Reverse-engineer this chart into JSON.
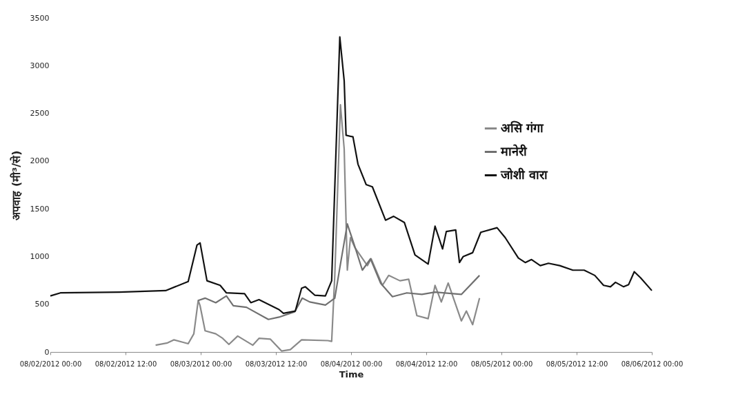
{
  "chart_data": {
    "type": "line",
    "xlabel": "Time",
    "ylabel": "अपवाह (मी³/से)",
    "xlim": [
      "2012-08-02T00:00",
      "2012-08-06T00:00"
    ],
    "xticks": [
      {
        "value": "2012-08-02T00:00",
        "label": "08/02/2012 00:00"
      },
      {
        "value": "2012-08-02T12:00",
        "label": "08/02/2012 12:00"
      },
      {
        "value": "2012-08-03T00:00",
        "label": "08/03/2012 00:00"
      },
      {
        "value": "2012-08-03T12:00",
        "label": "08/03/2012 12:00"
      },
      {
        "value": "2012-08-04T00:00",
        "label": "08/04/2012 00:00"
      },
      {
        "value": "2012-08-04T12:00",
        "label": "08/04/2012 12:00"
      },
      {
        "value": "2012-08-05T00:00",
        "label": "08/05/2012 00:00"
      },
      {
        "value": "2012-08-05T12:00",
        "label": "08/05/2012 12:00"
      },
      {
        "value": "2012-08-06T00:00",
        "label": "08/06/2012 00:00"
      }
    ],
    "ylim": [
      0,
      3500
    ],
    "yticks": [
      0,
      500,
      1000,
      1500,
      2000,
      2500,
      3000,
      3500
    ],
    "grid": false,
    "legend": "top right",
    "line_style": "solid",
    "marker": "none",
    "series": [
      {
        "name": "असि गंगा",
        "color": "#8a8a8a",
        "x": [
          "2012-08-02T16:48",
          "2012-08-02T18:42",
          "2012-08-02T19:42",
          "2012-08-02T22:00",
          "2012-08-02T22:54",
          "2012-08-02T23:36",
          "2012-08-02T23:54",
          "2012-08-03T00:42",
          "2012-08-03T02:24",
          "2012-08-03T03:30",
          "2012-08-03T04:30",
          "2012-08-03T05:54",
          "2012-08-03T08:18",
          "2012-08-03T09:18",
          "2012-08-03T11:06",
          "2012-08-03T12:54",
          "2012-08-03T14:18",
          "2012-08-03T16:06",
          "2012-08-03T20:18",
          "2012-08-03T20:54",
          "2012-08-03T21:24",
          "2012-08-03T22:18",
          "2012-08-03T22:54",
          "2012-08-03T23:24",
          "2012-08-03T23:54",
          "2012-08-04T00:36",
          "2012-08-04T02:36",
          "2012-08-04T03:12",
          "2012-08-04T05:00",
          "2012-08-04T06:00",
          "2012-08-04T07:48",
          "2012-08-04T09:12",
          "2012-08-04T10:30",
          "2012-08-04T12:18",
          "2012-08-04T13:24",
          "2012-08-04T14:24",
          "2012-08-04T15:30",
          "2012-08-04T17:36",
          "2012-08-04T18:24",
          "2012-08-04T19:24",
          "2012-08-04T20:30"
        ],
        "values": [
          71,
          95,
          127,
          87,
          190,
          540,
          484,
          222,
          190,
          143,
          79,
          167,
          71,
          143,
          135,
          10,
          24,
          127,
          119,
          111,
          802,
          2590,
          2127,
          857,
          1198,
          1095,
          905,
          976,
          698,
          802,
          746,
          762,
          381,
          349,
          698,
          524,
          722,
          325,
          429,
          286,
          564
        ]
      },
      {
        "name": "मानेरी",
        "color": "#707070",
        "x": [
          "2012-08-02T23:36",
          "2012-08-03T00:42",
          "2012-08-03T02:24",
          "2012-08-03T04:06",
          "2012-08-03T05:12",
          "2012-08-03T07:18",
          "2012-08-03T10:48",
          "2012-08-03T12:30",
          "2012-08-03T15:00",
          "2012-08-03T16:12",
          "2012-08-03T17:24",
          "2012-08-03T19:54",
          "2012-08-03T21:24",
          "2012-08-03T22:12",
          "2012-08-03T23:24",
          "2012-08-04T00:48",
          "2012-08-04T01:48",
          "2012-08-04T03:06",
          "2012-08-04T04:42",
          "2012-08-04T06:36",
          "2012-08-04T08:54",
          "2012-08-04T11:18",
          "2012-08-04T13:24",
          "2012-08-04T17:36",
          "2012-08-04T20:30"
        ],
        "values": [
          540,
          564,
          516,
          587,
          484,
          468,
          341,
          365,
          421,
          564,
          524,
          492,
          564,
          881,
          1341,
          1064,
          857,
          976,
          722,
          579,
          619,
          603,
          627,
          603,
          802
        ]
      },
      {
        "name": "जोशी वारा",
        "color": "#111111",
        "x": [
          "2012-08-02T00:00",
          "2012-08-02T01:36",
          "2012-08-02T11:00",
          "2012-08-02T18:24",
          "2012-08-02T22:00",
          "2012-08-02T23:24",
          "2012-08-02T23:54",
          "2012-08-03T01:00",
          "2012-08-03T03:06",
          "2012-08-03T04:06",
          "2012-08-03T07:00",
          "2012-08-03T08:00",
          "2012-08-03T09:18",
          "2012-08-03T12:30",
          "2012-08-03T13:12",
          "2012-08-03T15:06",
          "2012-08-03T16:06",
          "2012-08-03T16:42",
          "2012-08-03T18:12",
          "2012-08-03T19:54",
          "2012-08-03T20:54",
          "2012-08-03T22:12",
          "2012-08-03T22:54",
          "2012-08-03T23:12",
          "2012-08-04T00:18",
          "2012-08-04T01:06",
          "2012-08-04T02:24",
          "2012-08-04T03:24",
          "2012-08-04T05:30",
          "2012-08-04T06:48",
          "2012-08-04T08:30",
          "2012-08-04T10:12",
          "2012-08-04T12:18",
          "2012-08-04T13:24",
          "2012-08-04T14:36",
          "2012-08-04T15:12",
          "2012-08-04T16:42",
          "2012-08-04T17:18",
          "2012-08-04T17:54",
          "2012-08-04T19:24",
          "2012-08-04T20:42",
          "2012-08-04T23:18",
          "2012-08-05T00:36",
          "2012-08-05T02:42",
          "2012-08-05T03:48",
          "2012-08-05T04:48",
          "2012-08-05T06:12",
          "2012-08-05T07:30",
          "2012-08-05T09:18",
          "2012-08-05T11:24",
          "2012-08-05T13:12",
          "2012-08-05T14:54",
          "2012-08-05T16:18",
          "2012-08-05T17:24",
          "2012-08-05T18:12",
          "2012-08-05T19:30",
          "2012-08-05T20:18",
          "2012-08-05T21:12",
          "2012-08-05T22:12",
          "2012-08-06T00:00"
        ],
        "values": [
          587,
          619,
          627,
          643,
          738,
          1119,
          1143,
          746,
          698,
          619,
          611,
          516,
          548,
          444,
          405,
          429,
          667,
          683,
          595,
          587,
          746,
          3300,
          2841,
          2270,
          2254,
          1968,
          1754,
          1730,
          1381,
          1421,
          1357,
          1016,
          921,
          1318,
          1079,
          1262,
          1278,
          937,
          1000,
          1040,
          1254,
          1302,
          1198,
          984,
          937,
          968,
          905,
          929,
          905,
          857,
          857,
          802,
          698,
          683,
          730,
          683,
          706,
          841,
          778,
          643
        ]
      }
    ]
  }
}
